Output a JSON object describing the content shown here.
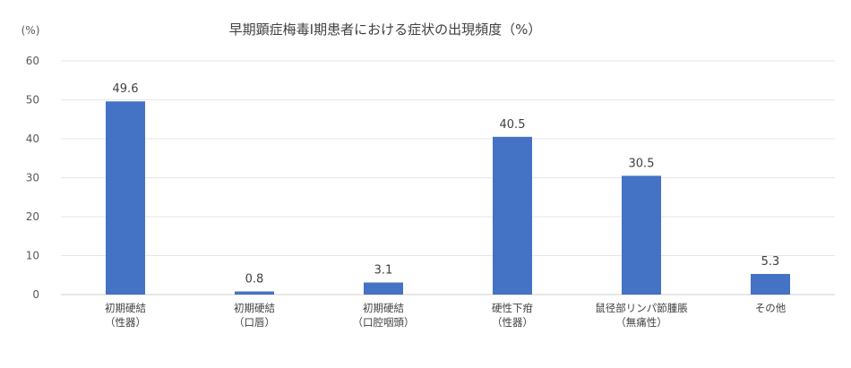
{
  "chart_data": {
    "type": "bar",
    "title": "早期顕症梅毒Ⅰ期患者における症状の出現頻度（%）",
    "y_unit": "(%)",
    "ylim": [
      0,
      60
    ],
    "y_ticks": [
      "0",
      "10",
      "20",
      "30",
      "40",
      "50",
      "60"
    ],
    "grid": true,
    "legend": "none",
    "bar_color": "#4472C4",
    "categories": [
      [
        "初期硬結",
        "（性器）"
      ],
      [
        "初期硬結",
        "（口唇）"
      ],
      [
        "初期硬結",
        "（口腔咽頭）"
      ],
      [
        "硬性下疳",
        "（性器）"
      ],
      [
        "鼠径部リンパ節腫脹",
        "（無痛性）"
      ],
      [
        "その他"
      ]
    ],
    "values": [
      49.6,
      0.8,
      3.1,
      40.5,
      30.5,
      5.3
    ],
    "data_labels": [
      "49.6",
      "0.8",
      "3.1",
      "40.5",
      "30.5",
      "5.3"
    ]
  }
}
